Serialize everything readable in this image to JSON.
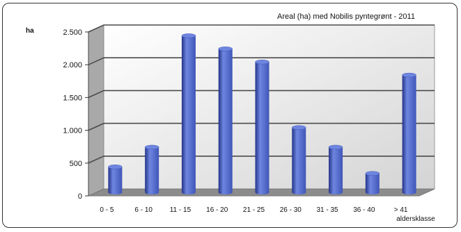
{
  "chart_data": {
    "type": "bar",
    "title": "Areal (ha) med Nobilis pyntegrønt - 2011",
    "ylabel": "ha",
    "xlabel": "aldersklasse",
    "categories": [
      "0 - 5",
      "6 - 10",
      "11 - 15",
      "16 - 20",
      "21 - 25",
      "26 - 30",
      "31 - 35",
      "36 - 40",
      "> 41"
    ],
    "values": [
      400,
      700,
      2400,
      2200,
      2000,
      1000,
      700,
      300,
      1800
    ],
    "ylim": [
      0,
      2500
    ],
    "yticks": [
      0,
      500,
      1000,
      1500,
      2000,
      2500
    ],
    "ytick_labels": [
      "0",
      "500",
      "1.000",
      "1.500",
      "2.000",
      "2.500"
    ],
    "grid": true,
    "legend": "none",
    "colors": {
      "bar": "#3f56b8",
      "bar_light": "#6f86e0",
      "bar_dark": "#24348a",
      "wall": "#d4d4d4",
      "floor": "#8c8c8c",
      "gridline": "#4a4a4a"
    }
  }
}
